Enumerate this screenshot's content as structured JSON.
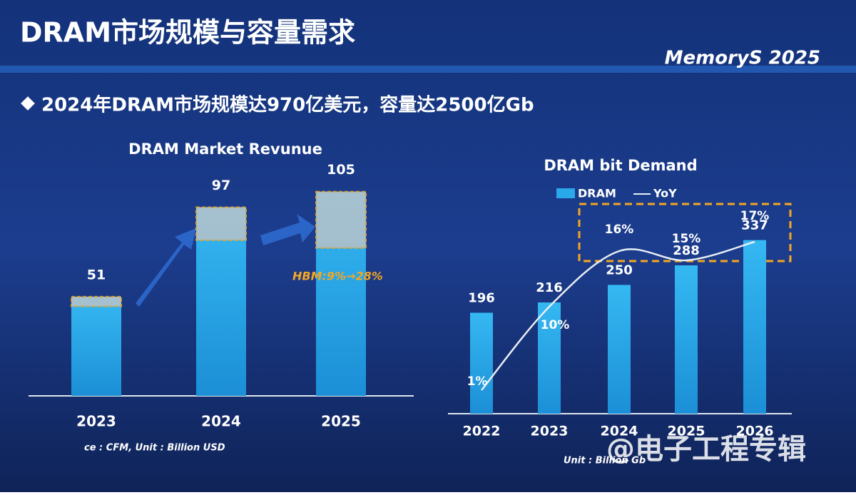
{
  "header": {
    "title": "DRAM市场规模与容量需求",
    "logo": "MemoryS 2025",
    "bullet": "2024年DRAM市场规模达970亿美元，容量达2500亿Gb"
  },
  "chart_data": [
    {
      "type": "bar",
      "title": "DRAM Market Revunue",
      "categories": [
        "2023",
        "2024",
        "2025"
      ],
      "values": [
        51,
        97,
        105
      ],
      "hbm_values": [
        5,
        17,
        29
      ],
      "color": "#2aa9ea",
      "hbm_color": "#b9c2c9",
      "ylim": [
        0,
        110
      ],
      "annotation": "HBM:9%→28%",
      "source": "ce : CFM, Unit : Billion USD"
    },
    {
      "type": "bar-line",
      "title": "DRAM bit Demand",
      "categories": [
        "2022",
        "2023",
        "2024",
        "2025",
        "2026"
      ],
      "series": [
        {
          "name": "DRAM",
          "color": "#2aa9ea",
          "values": [
            196,
            216,
            250,
            288,
            337
          ]
        },
        {
          "name": "YoY",
          "color": "#e8eef5",
          "axis": "y2",
          "values": [
            1,
            10,
            16,
            15,
            17
          ],
          "value_labels": [
            "1%",
            "10%",
            "16%",
            "15%",
            "17%"
          ]
        }
      ],
      "ylim": [
        0,
        360
      ],
      "y2lim": [
        0,
        20
      ],
      "source": "Unit : Billion Gb"
    }
  ],
  "watermark": "@电子工程专辑"
}
